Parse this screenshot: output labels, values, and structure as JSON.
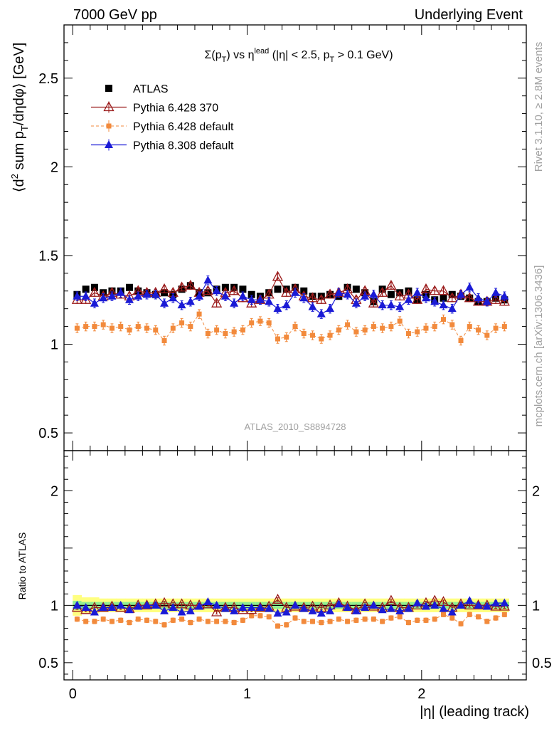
{
  "header": {
    "left": "7000 GeV pp",
    "right": "Underlying Event"
  },
  "side_labels": {
    "rivet": "Rivet 3.1.10, ≥ 2.8M events",
    "mcplots": "mcplots.cern.ch [arXiv:1306.3436]"
  },
  "analysis_id": "ATLAS_2010_S8894728",
  "plot_title": {
    "a": "Σ(p",
    "a_sub": "T",
    "b": ") vs η",
    "b_sup": "lead",
    "c": " (|η| < 2.5, p",
    "c_sub": "T",
    "d": " > 0.1 GeV)"
  },
  "ylabel_main": {
    "a": "⟨d",
    "sup": "2",
    "b": " sum p",
    "sub": "T",
    "c": "/dηdφ⟩ [GeV]"
  },
  "ylabel_ratio": "Ratio to ATLAS",
  "xlabel": "|η| (leading track)",
  "colors": {
    "atlas": "#000000",
    "py6_370": "#9b1b1b",
    "py6_default": "#f28a3c",
    "py8_default": "#1a1ad6",
    "band_inner": "#90ee90",
    "band_outer": "#ffff80"
  },
  "chart_data": [
    {
      "type": "scatter",
      "panel": "main",
      "x": [
        0.025,
        0.075,
        0.125,
        0.175,
        0.225,
        0.275,
        0.325,
        0.375,
        0.425,
        0.475,
        0.525,
        0.575,
        0.625,
        0.675,
        0.725,
        0.775,
        0.825,
        0.875,
        0.925,
        0.975,
        1.025,
        1.075,
        1.125,
        1.175,
        1.225,
        1.275,
        1.325,
        1.375,
        1.425,
        1.475,
        1.525,
        1.575,
        1.625,
        1.675,
        1.725,
        1.775,
        1.825,
        1.875,
        1.925,
        1.975,
        2.025,
        2.075,
        2.125,
        2.175,
        2.225,
        2.275,
        2.325,
        2.375,
        2.425,
        2.475
      ],
      "xlim": [
        -0.05,
        2.6
      ],
      "ylim": [
        0.4,
        2.8
      ],
      "yticks": [
        0.5,
        1,
        1.5,
        2,
        2.5
      ],
      "xticks": [
        0,
        1,
        2
      ],
      "series": [
        {
          "name": "ATLAS",
          "marker": "square",
          "values": [
            1.28,
            1.31,
            1.32,
            1.29,
            1.3,
            1.3,
            1.32,
            1.3,
            1.29,
            1.28,
            1.29,
            1.28,
            1.31,
            1.33,
            1.29,
            1.29,
            1.31,
            1.32,
            1.32,
            1.31,
            1.28,
            1.27,
            1.29,
            1.31,
            1.31,
            1.32,
            1.3,
            1.27,
            1.27,
            1.28,
            1.27,
            1.32,
            1.31,
            1.29,
            1.24,
            1.31,
            1.28,
            1.29,
            1.3,
            1.25,
            1.28,
            1.25,
            1.26,
            1.28,
            1.27,
            1.26,
            1.24,
            1.24,
            1.26,
            1.25
          ]
        },
        {
          "name": "Pythia 6.428 370",
          "marker": "triangle-open",
          "values": [
            1.25,
            1.25,
            1.29,
            1.27,
            1.29,
            1.28,
            1.27,
            1.3,
            1.29,
            1.29,
            1.31,
            1.29,
            1.32,
            1.33,
            1.29,
            1.3,
            1.23,
            1.29,
            1.3,
            1.26,
            1.23,
            1.25,
            1.28,
            1.38,
            1.29,
            1.31,
            1.27,
            1.26,
            1.25,
            1.28,
            1.29,
            1.31,
            1.25,
            1.3,
            1.23,
            1.29,
            1.33,
            1.27,
            1.28,
            1.25,
            1.31,
            1.3,
            1.3,
            1.26,
            1.28,
            1.26,
            1.24,
            1.24,
            1.25,
            1.24
          ]
        },
        {
          "name": "Pythia 6.428 default",
          "marker": "square-small",
          "values": [
            1.09,
            1.1,
            1.1,
            1.11,
            1.09,
            1.1,
            1.08,
            1.1,
            1.09,
            1.08,
            1.02,
            1.09,
            1.12,
            1.1,
            1.17,
            1.06,
            1.08,
            1.06,
            1.07,
            1.08,
            1.12,
            1.13,
            1.12,
            1.03,
            1.04,
            1.1,
            1.06,
            1.05,
            1.03,
            1.05,
            1.08,
            1.11,
            1.07,
            1.08,
            1.1,
            1.09,
            1.1,
            1.13,
            1.06,
            1.07,
            1.09,
            1.1,
            1.14,
            1.11,
            1.02,
            1.1,
            1.08,
            1.05,
            1.09,
            1.1
          ]
        },
        {
          "name": "Pythia 8.308 default",
          "marker": "triangle-filled",
          "values": [
            1.27,
            1.27,
            1.23,
            1.26,
            1.27,
            1.29,
            1.25,
            1.27,
            1.28,
            1.28,
            1.23,
            1.26,
            1.22,
            1.24,
            1.27,
            1.36,
            1.3,
            1.27,
            1.23,
            1.27,
            1.25,
            1.25,
            1.24,
            1.2,
            1.22,
            1.29,
            1.26,
            1.21,
            1.17,
            1.2,
            1.29,
            1.28,
            1.23,
            1.27,
            1.28,
            1.22,
            1.22,
            1.21,
            1.25,
            1.29,
            1.26,
            1.24,
            1.22,
            1.2,
            1.28,
            1.32,
            1.26,
            1.24,
            1.29,
            1.27
          ]
        }
      ],
      "legend_position": "top-left"
    },
    {
      "type": "scatter",
      "panel": "ratio",
      "ylabel": "Ratio to ATLAS",
      "ylim": [
        0.35,
        2.35
      ],
      "yticks": [
        0.5,
        1,
        2
      ],
      "reference_line": 1,
      "band_inner_halfwidth": [
        0.04,
        0.03,
        0.03,
        0.03,
        0.03,
        0.03,
        0.03,
        0.03,
        0.03,
        0.03,
        0.03,
        0.03,
        0.03,
        0.03,
        0.03,
        0.03,
        0.03,
        0.03,
        0.03,
        0.03,
        0.03,
        0.03,
        0.03,
        0.03,
        0.03,
        0.03,
        0.03,
        0.03,
        0.03,
        0.03,
        0.03,
        0.03,
        0.03,
        0.03,
        0.03,
        0.03,
        0.03,
        0.03,
        0.03,
        0.03,
        0.03,
        0.03,
        0.03,
        0.03,
        0.03,
        0.03,
        0.03,
        0.03,
        0.03,
        0.03
      ],
      "band_outer_halfwidth": [
        0.09,
        0.07,
        0.07,
        0.06,
        0.06,
        0.06,
        0.06,
        0.06,
        0.06,
        0.06,
        0.06,
        0.06,
        0.06,
        0.06,
        0.06,
        0.06,
        0.06,
        0.06,
        0.06,
        0.06,
        0.06,
        0.06,
        0.06,
        0.06,
        0.06,
        0.06,
        0.06,
        0.06,
        0.06,
        0.06,
        0.06,
        0.06,
        0.06,
        0.06,
        0.06,
        0.06,
        0.06,
        0.06,
        0.06,
        0.06,
        0.06,
        0.06,
        0.06,
        0.06,
        0.06,
        0.06,
        0.06,
        0.06,
        0.06,
        0.06
      ],
      "series": [
        {
          "name": "Pythia 6.428 370",
          "values": [
            0.98,
            0.96,
            0.98,
            0.98,
            0.99,
            0.98,
            0.97,
            1.0,
            1.0,
            1.01,
            1.02,
            1.01,
            1.01,
            1.0,
            1.0,
            1.01,
            0.94,
            0.98,
            0.98,
            0.96,
            0.96,
            0.98,
            0.99,
            1.05,
            0.98,
            0.99,
            0.98,
            0.99,
            0.98,
            1.0,
            1.02,
            0.99,
            0.96,
            1.01,
            0.99,
            0.98,
            1.04,
            0.98,
            0.98,
            1.0,
            1.02,
            1.04,
            1.03,
            0.98,
            1.01,
            1.0,
            1.0,
            1.0,
            0.99,
            0.99
          ]
        },
        {
          "name": "Pythia 6.428 default",
          "values": [
            0.88,
            0.86,
            0.86,
            0.88,
            0.86,
            0.87,
            0.85,
            0.88,
            0.87,
            0.86,
            0.83,
            0.87,
            0.88,
            0.85,
            0.88,
            0.86,
            0.86,
            0.86,
            0.85,
            0.87,
            0.91,
            0.91,
            0.9,
            0.82,
            0.83,
            0.89,
            0.86,
            0.86,
            0.85,
            0.86,
            0.88,
            0.86,
            0.87,
            0.88,
            0.88,
            0.86,
            0.89,
            0.9,
            0.85,
            0.87,
            0.87,
            0.88,
            0.92,
            0.89,
            0.84,
            0.92,
            0.9,
            0.86,
            0.89,
            0.92
          ]
        },
        {
          "name": "Pythia 8.308 default",
          "values": [
            1.0,
            0.98,
            0.94,
            0.98,
            0.98,
            1.0,
            0.96,
            0.99,
            1.0,
            1.0,
            0.95,
            0.98,
            0.94,
            0.95,
            0.99,
            1.03,
            1.0,
            0.97,
            0.95,
            0.98,
            0.98,
            0.98,
            0.97,
            0.93,
            0.94,
            1.0,
            0.97,
            0.95,
            0.93,
            0.95,
            1.01,
            0.98,
            0.95,
            0.98,
            1.0,
            0.96,
            0.97,
            0.95,
            0.97,
            1.02,
            0.99,
            1.0,
            0.97,
            0.94,
            1.0,
            1.04,
            1.0,
            0.99,
            1.02,
            1.02
          ]
        }
      ]
    }
  ]
}
